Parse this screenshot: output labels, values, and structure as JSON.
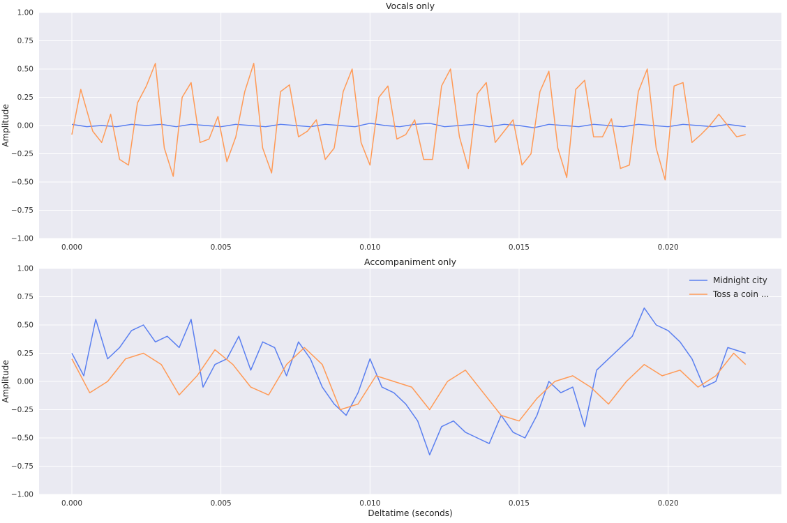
{
  "chart_data": [
    {
      "type": "line",
      "title": "Vocals only",
      "xlabel": "",
      "ylabel": "Amplitude",
      "xlim": [
        -0.0011,
        0.0238
      ],
      "ylim": [
        -1.0,
        1.0
      ],
      "xticks": [
        "0.000",
        "0.005",
        "0.010",
        "0.015",
        "0.020"
      ],
      "yticks": [
        "1.00",
        "0.75",
        "0.50",
        "0.25",
        "0.00",
        "−0.25",
        "−0.50",
        "−0.75",
        "−1.00"
      ],
      "legend": null,
      "series": [
        {
          "name": "Midnight city",
          "color": "#5a7ff0",
          "x": [
            0.0,
            0.0005,
            0.001,
            0.0015,
            0.002,
            0.0025,
            0.003,
            0.0035,
            0.004,
            0.0045,
            0.005,
            0.0055,
            0.006,
            0.0065,
            0.007,
            0.0075,
            0.008,
            0.0085,
            0.009,
            0.0095,
            0.01,
            0.0105,
            0.011,
            0.0115,
            0.012,
            0.0125,
            0.013,
            0.0135,
            0.014,
            0.0145,
            0.015,
            0.0155,
            0.016,
            0.0165,
            0.017,
            0.0175,
            0.018,
            0.0185,
            0.019,
            0.0195,
            0.02,
            0.0205,
            0.021,
            0.0215,
            0.022,
            0.0226
          ],
          "y": [
            0.01,
            -0.01,
            0.0,
            -0.01,
            0.01,
            0.0,
            0.01,
            -0.01,
            0.01,
            0.0,
            -0.01,
            0.01,
            0.0,
            -0.01,
            0.01,
            0.0,
            -0.01,
            0.01,
            0.0,
            -0.01,
            0.02,
            0.0,
            -0.01,
            0.01,
            0.02,
            -0.01,
            0.0,
            0.01,
            -0.01,
            0.01,
            0.0,
            -0.02,
            0.01,
            0.0,
            -0.01,
            0.01,
            0.0,
            -0.01,
            0.01,
            0.0,
            -0.01,
            0.01,
            0.0,
            -0.01,
            0.01,
            -0.01
          ]
        },
        {
          "name": "Toss a coin ...",
          "color": "#ff9a56",
          "x": [
            0.0,
            0.0003,
            0.0007,
            0.001,
            0.0013,
            0.0016,
            0.0019,
            0.0022,
            0.0025,
            0.0028,
            0.0031,
            0.0034,
            0.0037,
            0.004,
            0.0043,
            0.0046,
            0.0049,
            0.0052,
            0.0055,
            0.0058,
            0.0061,
            0.0064,
            0.0067,
            0.007,
            0.0073,
            0.0076,
            0.0079,
            0.0082,
            0.0085,
            0.0088,
            0.0091,
            0.0094,
            0.0097,
            0.01,
            0.0103,
            0.0106,
            0.0109,
            0.0112,
            0.0115,
            0.0118,
            0.0121,
            0.0124,
            0.0127,
            0.013,
            0.0133,
            0.0136,
            0.0139,
            0.0142,
            0.0145,
            0.0148,
            0.0151,
            0.0154,
            0.0157,
            0.016,
            0.0163,
            0.0166,
            0.0169,
            0.0172,
            0.0175,
            0.0178,
            0.0181,
            0.0184,
            0.0187,
            0.019,
            0.0193,
            0.0196,
            0.0199,
            0.0202,
            0.0205,
            0.0208,
            0.0211,
            0.0214,
            0.0217,
            0.022,
            0.0223,
            0.0226
          ],
          "y": [
            -0.08,
            0.32,
            -0.05,
            -0.15,
            0.1,
            -0.3,
            -0.35,
            0.2,
            0.35,
            0.55,
            -0.2,
            -0.45,
            0.25,
            0.38,
            -0.15,
            -0.12,
            0.08,
            -0.32,
            -0.1,
            0.3,
            0.55,
            -0.2,
            -0.42,
            0.3,
            0.36,
            -0.1,
            -0.05,
            0.05,
            -0.3,
            -0.2,
            0.3,
            0.5,
            -0.15,
            -0.35,
            0.25,
            0.35,
            -0.12,
            -0.08,
            0.05,
            -0.3,
            -0.3,
            0.35,
            0.5,
            -0.1,
            -0.38,
            0.28,
            0.38,
            -0.15,
            -0.05,
            0.05,
            -0.35,
            -0.25,
            0.3,
            0.48,
            -0.2,
            -0.46,
            0.32,
            0.4,
            -0.1,
            -0.1,
            0.06,
            -0.38,
            -0.35,
            0.3,
            0.5,
            -0.2,
            -0.48,
            0.35,
            0.38,
            -0.15,
            -0.08,
            0.0,
            0.1,
            0.0,
            -0.1,
            -0.08
          ]
        }
      ]
    },
    {
      "type": "line",
      "title": "Accompaniment only",
      "xlabel": "Deltatime (seconds)",
      "ylabel": "Amplitude",
      "xlim": [
        -0.0011,
        0.0238
      ],
      "ylim": [
        -1.0,
        1.0
      ],
      "xticks": [
        "0.000",
        "0.005",
        "0.010",
        "0.015",
        "0.020"
      ],
      "yticks": [
        "1.00",
        "0.75",
        "0.50",
        "0.25",
        "0.00",
        "−0.25",
        "−0.50",
        "−0.75",
        "−1.00"
      ],
      "legend": "top-right",
      "series": [
        {
          "name": "Midnight city",
          "color": "#5a7ff0",
          "x": [
            0.0,
            0.0004,
            0.0008,
            0.0012,
            0.0016,
            0.002,
            0.0024,
            0.0028,
            0.0032,
            0.0036,
            0.004,
            0.0044,
            0.0048,
            0.0052,
            0.0056,
            0.006,
            0.0064,
            0.0068,
            0.0072,
            0.0076,
            0.008,
            0.0084,
            0.0088,
            0.0092,
            0.0096,
            0.01,
            0.0104,
            0.0108,
            0.0112,
            0.0116,
            0.012,
            0.0124,
            0.0128,
            0.0132,
            0.0136,
            0.014,
            0.0144,
            0.0148,
            0.0152,
            0.0156,
            0.016,
            0.0164,
            0.0168,
            0.0172,
            0.0176,
            0.018,
            0.0184,
            0.0188,
            0.0192,
            0.0196,
            0.02,
            0.0204,
            0.0208,
            0.0212,
            0.0216,
            0.022,
            0.0226
          ],
          "y": [
            0.25,
            0.05,
            0.55,
            0.2,
            0.3,
            0.45,
            0.5,
            0.35,
            0.4,
            0.3,
            0.55,
            -0.05,
            0.15,
            0.2,
            0.4,
            0.1,
            0.35,
            0.3,
            0.05,
            0.35,
            0.2,
            -0.05,
            -0.2,
            -0.3,
            -0.1,
            0.2,
            -0.05,
            -0.1,
            -0.2,
            -0.35,
            -0.65,
            -0.4,
            -0.35,
            -0.45,
            -0.5,
            -0.55,
            -0.3,
            -0.45,
            -0.5,
            -0.3,
            0.0,
            -0.1,
            -0.05,
            -0.4,
            0.1,
            0.2,
            0.3,
            0.4,
            0.65,
            0.5,
            0.45,
            0.35,
            0.2,
            -0.05,
            0.0,
            0.3,
            0.25
          ]
        },
        {
          "name": "Toss a coin ...",
          "color": "#ff9a56",
          "x": [
            0.0,
            0.0006,
            0.0012,
            0.0018,
            0.0024,
            0.003,
            0.0036,
            0.0042,
            0.0048,
            0.0054,
            0.006,
            0.0066,
            0.0072,
            0.0078,
            0.0084,
            0.009,
            0.0096,
            0.0102,
            0.0108,
            0.0114,
            0.012,
            0.0126,
            0.0132,
            0.0138,
            0.0144,
            0.015,
            0.0156,
            0.0162,
            0.0168,
            0.0174,
            0.018,
            0.0186,
            0.0192,
            0.0198,
            0.0204,
            0.021,
            0.0216,
            0.0222,
            0.0226
          ],
          "y": [
            0.2,
            -0.1,
            0.0,
            0.2,
            0.25,
            0.15,
            -0.12,
            0.05,
            0.28,
            0.15,
            -0.05,
            -0.12,
            0.15,
            0.3,
            0.15,
            -0.25,
            -0.2,
            0.05,
            0.0,
            -0.05,
            -0.25,
            0.0,
            0.1,
            -0.1,
            -0.3,
            -0.35,
            -0.15,
            0.0,
            0.05,
            -0.05,
            -0.2,
            0.0,
            0.15,
            0.05,
            0.1,
            -0.05,
            0.05,
            0.25,
            0.15
          ]
        }
      ]
    }
  ]
}
